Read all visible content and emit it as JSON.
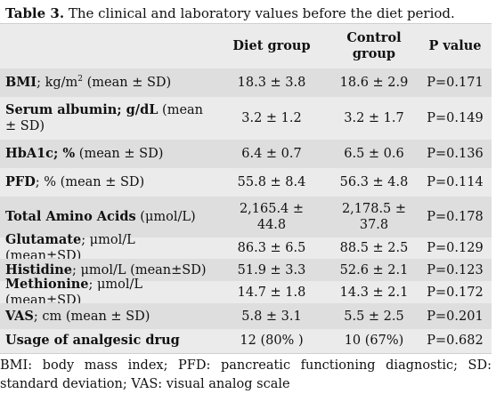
{
  "caption": {
    "label": "Table 3.",
    "text": "The clinical and laboratory values before the diet period."
  },
  "headers": {
    "col0": "",
    "col1": "Diet group",
    "col2": "Control group",
    "col3": "P value"
  },
  "rows": [
    {
      "name": "BMI",
      "unit_pre": "; kg/m",
      "unit_sup": "2",
      "unit_post": " (mean ± SD)",
      "diet": "18.3 ± 3.8",
      "control": "18.6 ± 2.9",
      "p": "P=0.171"
    },
    {
      "name": "Serum albumin; g/dL",
      "unit_pre": " (mean ± SD)",
      "diet": "3.2 ± 1.2",
      "control": "3.2 ± 1.7",
      "p": "P=0.149"
    },
    {
      "name": "HbA1c; %",
      "unit_pre": " (mean ± SD)",
      "diet": "6.4 ± 0.7",
      "control": "6.5 ± 0.6",
      "p": "P=0.136"
    },
    {
      "name": "PFD",
      "unit_pre": "; % (mean ± SD)",
      "diet": "55.8 ± 8.4",
      "control": "56.3 ± 4.8",
      "p": "P=0.114"
    },
    {
      "name": "Total Amino Acids",
      "unit_pre": " (μmol/L)",
      "diet": "2,165.4 ± 44.8",
      "control": "2,178.5 ± 37.8",
      "p": "P=0.178"
    },
    {
      "name": "Glutamate",
      "unit_pre": "; μmol/L (mean±SD)",
      "diet": "86.3 ± 6.5",
      "control": "88.5 ± 2.5",
      "p": "P=0.129"
    },
    {
      "name": "Histidine",
      "unit_pre": "; μmol/L (mean±SD)",
      "diet": "51.9 ± 3.3",
      "control": "52.6 ± 2.1",
      "p": "P=0.123"
    },
    {
      "name": "Methionine",
      "unit_pre": "; μmol/L (mean±SD)",
      "diet": "14.7 ± 1.8",
      "control": "14.3 ± 2.1",
      "p": "P=0.172"
    },
    {
      "name": "VAS",
      "unit_pre": "; cm (mean ± SD)",
      "diet": "5.8 ± 3.1",
      "control": "5.5 ± 2.5",
      "p": "P=0.201"
    },
    {
      "name": "Usage of analgesic drug",
      "unit_pre": "",
      "diet": "12 (80% )",
      "control": "10 (67%)",
      "p": "P=0.682"
    }
  ],
  "footnote": "BMI: body mass index; PFD: pancreatic functioning diagnostic; SD: standard deviation; VAS: visual analog scale",
  "colors": {
    "table_bg": "#ebebeb",
    "row_alt_bg": "#dedede"
  }
}
